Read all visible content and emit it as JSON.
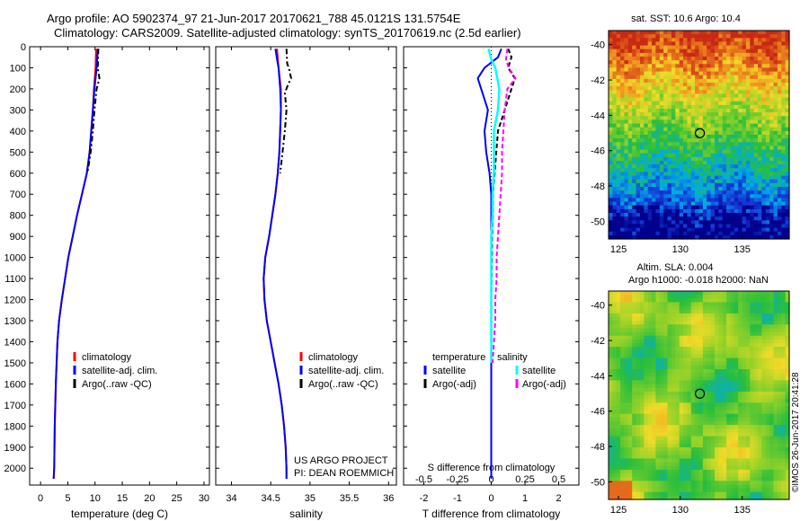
{
  "header": {
    "line1": "Argo profile: AO 5902374_97 21-Jun-2017 20170621_788 45.0121S 131.5754E",
    "line2": "Climatology: CARS2009. Satellite-adjusted climatology: synTS_20170619.nc (2.5d earlier)"
  },
  "credit": {
    "project": "US ARGO PROJECT",
    "pi": "PI: DEAN ROEMMICH",
    "stamp": "©IMOS 26-Jun-2017 20:41:28"
  },
  "colors": {
    "climatology": "#ff0000",
    "satellite": "#0000ff",
    "argo": "#000000",
    "sal_satellite": "#00ffff",
    "sal_argo": "#ff00ff"
  },
  "chart_data": [
    {
      "type": "line",
      "xlabel": "temperature (deg C)",
      "ylabel": "",
      "xlim": [
        -2,
        31
      ],
      "ylim": [
        2080,
        0
      ],
      "xticks": [
        "0",
        "5",
        "10",
        "15",
        "20",
        "25",
        "30"
      ],
      "yticks": [
        "0",
        "100",
        "200",
        "300",
        "400",
        "500",
        "600",
        "700",
        "800",
        "900",
        "1000",
        "1100",
        "1200",
        "1300",
        "1400",
        "1500",
        "1600",
        "1700",
        "1800",
        "1900",
        "2000"
      ],
      "legend": [
        "climatology",
        "satellite-adj. clim.",
        "Argo(..raw -QC)"
      ],
      "series": [
        {
          "name": "climatology",
          "color": "#ff0000",
          "depth": [
            10,
            100,
            200,
            300,
            400,
            500,
            600,
            700,
            800,
            900,
            1000,
            1100,
            1200,
            1300,
            1400,
            1600,
            1800,
            2000,
            2050
          ],
          "values": [
            10.2,
            10.1,
            9.8,
            9.6,
            9.3,
            9.0,
            8.5,
            7.6,
            6.7,
            5.9,
            5.1,
            4.5,
            3.9,
            3.4,
            3.1,
            2.8,
            2.6,
            2.5,
            2.4
          ]
        },
        {
          "name": "satellite-adj. clim.",
          "color": "#0000ff",
          "depth": [
            10,
            100,
            200,
            300,
            400,
            500,
            600,
            700,
            800,
            900,
            1000,
            1100,
            1200,
            1300,
            1400,
            1600,
            1800,
            2000,
            2050
          ],
          "values": [
            10.5,
            10.3,
            9.9,
            9.6,
            9.3,
            9.0,
            8.5,
            7.6,
            6.7,
            5.9,
            5.1,
            4.5,
            3.9,
            3.4,
            3.1,
            2.8,
            2.6,
            2.5,
            2.4
          ]
        },
        {
          "name": "Argo(..raw -QC)",
          "color": "#000000",
          "depth": [
            10,
            100,
            150,
            200,
            300,
            400,
            500,
            600
          ],
          "values": [
            10.6,
            10.5,
            10.8,
            10.3,
            9.9,
            9.6,
            9.2,
            8.6
          ]
        }
      ]
    },
    {
      "type": "line",
      "xlabel": "salinity",
      "ylabel": "",
      "xlim": [
        33.8,
        36.1
      ],
      "ylim": [
        2080,
        0
      ],
      "xticks": [
        "34",
        "34.5",
        "35",
        "35.5",
        "36"
      ],
      "legend": [
        "climatology",
        "satellite-adj. clim.",
        "Argo(..raw -QC)"
      ],
      "series": [
        {
          "name": "climatology",
          "color": "#ff0000",
          "depth": [
            10,
            100,
            200,
            300,
            400,
            500,
            600,
            700,
            800,
            900,
            1000,
            1100,
            1200,
            1300,
            1400,
            1500,
            1600,
            1700,
            1800,
            1900,
            2000,
            2050
          ],
          "values": [
            34.58,
            34.6,
            34.63,
            34.63,
            34.62,
            34.61,
            34.59,
            34.56,
            34.52,
            34.48,
            34.43,
            34.41,
            34.42,
            34.45,
            34.5,
            34.55,
            34.6,
            34.64,
            34.67,
            34.69,
            34.7,
            34.7
          ]
        },
        {
          "name": "satellite-adj. clim.",
          "color": "#0000ff",
          "depth": [
            10,
            60,
            100,
            200,
            300,
            400,
            500,
            600,
            700,
            800,
            900,
            1000,
            1100,
            1200,
            1300,
            1400,
            1500,
            1600,
            1700,
            1800,
            1900,
            2000,
            2050
          ],
          "values": [
            34.56,
            34.58,
            34.6,
            34.62,
            34.63,
            34.62,
            34.61,
            34.59,
            34.56,
            34.52,
            34.48,
            34.43,
            34.41,
            34.42,
            34.45,
            34.5,
            34.55,
            34.6,
            34.64,
            34.67,
            34.69,
            34.7,
            34.7
          ]
        },
        {
          "name": "Argo(..raw -QC)",
          "color": "#000000",
          "depth": [
            10,
            80,
            100,
            150,
            180,
            220,
            300,
            400,
            500,
            600
          ],
          "values": [
            34.7,
            34.71,
            34.73,
            34.76,
            34.72,
            34.68,
            34.7,
            34.68,
            34.65,
            34.62
          ]
        }
      ]
    },
    {
      "type": "line",
      "xlabel": "T difference from climatology",
      "ylabel": "",
      "top_xlabel": "S difference from climatology",
      "xlim": [
        -2.6,
        2.6
      ],
      "ylim": [
        2080,
        0
      ],
      "xticks": [
        "-2",
        "-1",
        "0",
        "1",
        "2"
      ],
      "top_xticks": [
        "-0.5",
        "-0.25",
        "0",
        "0.25",
        "0.5"
      ],
      "legend_temperature": {
        "title": "temperature",
        "items": [
          "satellite",
          "Argo(-adj)"
        ]
      },
      "legend_salinity": {
        "title": "salinity",
        "items": [
          "satellite",
          "Argo(-adj)"
        ]
      },
      "series": [
        {
          "name": "temperature satellite",
          "color": "#0000ff",
          "depth": [
            10,
            50,
            100,
            150,
            200,
            300,
            400,
            500,
            600,
            700,
            800,
            900,
            1000,
            1200,
            1400,
            1600,
            1800,
            2000,
            2050
          ],
          "values": [
            0.3,
            0.2,
            -0.2,
            -0.4,
            -0.3,
            -0.1,
            -0.2,
            -0.15,
            -0.05,
            0.0,
            0.0,
            0.0,
            0.0,
            0.0,
            0.0,
            0.0,
            0.0,
            0.0,
            0.0
          ]
        },
        {
          "name": "temperature Argo(-adj)",
          "color": "#000000",
          "depth": [
            10,
            50,
            100,
            150,
            200,
            300,
            400,
            500,
            600,
            700,
            800,
            900,
            1000,
            1200,
            1400
          ],
          "values": [
            0.5,
            0.6,
            0.5,
            0.7,
            0.6,
            0.4,
            0.2,
            0.15,
            0.1,
            0.05,
            0.05,
            0.02,
            0.02,
            0.0,
            0.0
          ]
        },
        {
          "name": "salinity satellite",
          "color": "#00ffff",
          "depth": [
            10,
            60,
            100,
            200,
            300,
            400,
            500,
            600,
            700,
            800,
            900,
            1000,
            1100,
            1200,
            1300,
            1400,
            1500
          ],
          "values": [
            -0.02,
            0.0,
            0.03,
            0.06,
            0.05,
            0.02,
            0.02,
            0.02,
            0.01,
            0.01,
            0.0,
            0.0,
            0.0,
            0.0,
            0.0,
            0.0,
            0.0
          ]
        },
        {
          "name": "salinity Argo(-adj)",
          "color": "#ff00ff",
          "depth": [
            10,
            60,
            100,
            150,
            200,
            300,
            400,
            500,
            600,
            700,
            800,
            900,
            1000,
            1100,
            1200,
            1300,
            1400,
            1500
          ],
          "values": [
            0.12,
            0.11,
            0.13,
            0.18,
            0.12,
            0.1,
            0.09,
            0.08,
            0.08,
            0.07,
            0.06,
            0.05,
            0.04,
            0.04,
            0.03,
            0.03,
            0.02,
            0.01
          ]
        }
      ]
    },
    {
      "type": "heatmap",
      "title": "sat. SST: 10.6  Argo: 10.4",
      "xticks": [
        "125",
        "130",
        "135"
      ],
      "yticks": [
        "-40",
        "-42",
        "-44",
        "-46",
        "-48",
        "-50"
      ],
      "xlim": [
        124.2,
        138.8
      ],
      "ylim": [
        -51,
        -39.2
      ],
      "marker": {
        "lon": 131.58,
        "lat": -45.01
      }
    },
    {
      "type": "heatmap",
      "title_lines": [
        "Altim. SLA: 0.004",
        "Argo h1000: -0.018 h2000: NaN"
      ],
      "xticks": [
        "125",
        "130",
        "135"
      ],
      "yticks": [
        "-40",
        "-42",
        "-44",
        "-46",
        "-48",
        "-50"
      ],
      "xlim": [
        124.2,
        138.8
      ],
      "ylim": [
        -51,
        -39.2
      ],
      "marker": {
        "lon": 131.58,
        "lat": -45.01
      }
    }
  ]
}
